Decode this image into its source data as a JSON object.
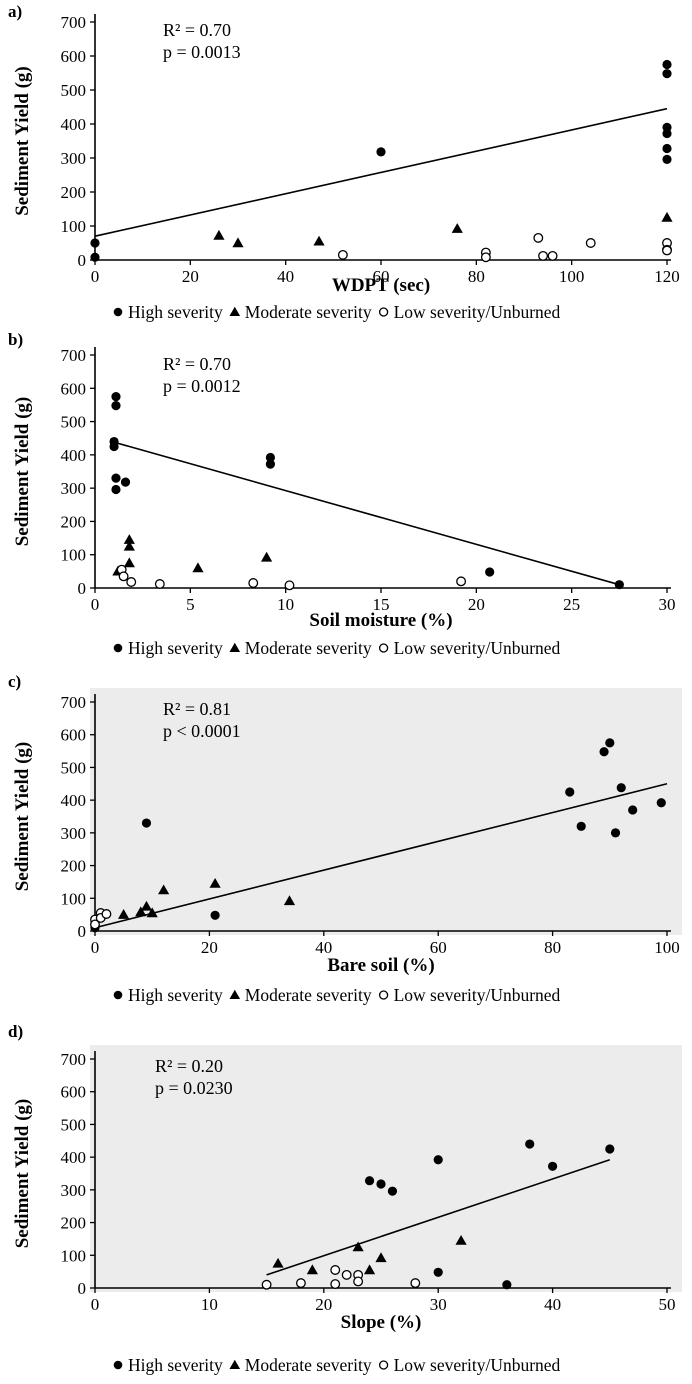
{
  "chart_data": [
    {
      "type": "scatter",
      "panel_label": "a)",
      "xlabel": "WDPT (sec)",
      "ylabel": "Sediment Yield (g)",
      "xlim": [
        0,
        120
      ],
      "ylim": [
        0,
        700
      ],
      "xticks": [
        "0",
        "20",
        "40",
        "60",
        "80",
        "100",
        "120"
      ],
      "yticks": [
        "0",
        "100",
        "200",
        "300",
        "400",
        "500",
        "600",
        "700"
      ],
      "stats": {
        "r2": "R² = 0.70",
        "p": "p = 0.0013"
      },
      "trendline": {
        "x": [
          0,
          120
        ],
        "y": [
          70,
          445
        ]
      },
      "grid": false,
      "legend_position": "bottom",
      "series": [
        {
          "name": "High severity",
          "marker": "circle-filled",
          "color": "#000000",
          "points": [
            [
              0,
              8
            ],
            [
              0,
              50
            ],
            [
              60,
              318
            ],
            [
              120,
              575
            ],
            [
              120,
              548
            ],
            [
              120,
              390
            ],
            [
              120,
              372
            ],
            [
              120,
              328
            ],
            [
              120,
              296
            ]
          ]
        },
        {
          "name": "Moderate severity",
          "marker": "triangle-filled",
          "color": "#000000",
          "points": [
            [
              26,
              72
            ],
            [
              30,
              50
            ],
            [
              47,
              55
            ],
            [
              76,
              92
            ],
            [
              120,
              125
            ]
          ]
        },
        {
          "name": "Low severity/Unburned",
          "marker": "circle-open",
          "color": "#000000",
          "points": [
            [
              52,
              15
            ],
            [
              82,
              22
            ],
            [
              82,
              8
            ],
            [
              93,
              65
            ],
            [
              94,
              12
            ],
            [
              96,
              12
            ],
            [
              104,
              50
            ],
            [
              120,
              50
            ],
            [
              120,
              30
            ],
            [
              120,
              28
            ]
          ]
        }
      ]
    },
    {
      "type": "scatter",
      "panel_label": "b)",
      "xlabel": "Soil moisture (%)",
      "ylabel": "Sediment Yield (g)",
      "xlim": [
        0,
        30
      ],
      "ylim": [
        0,
        700
      ],
      "xticks": [
        "0",
        "5",
        "10",
        "15",
        "20",
        "25",
        "30"
      ],
      "yticks": [
        "0",
        "100",
        "200",
        "300",
        "400",
        "500",
        "600",
        "700"
      ],
      "stats": {
        "r2": "R² = 0.70",
        "p": "p = 0.0012"
      },
      "trendline": {
        "x": [
          1,
          27.5
        ],
        "y": [
          438,
          10
        ]
      },
      "grid": false,
      "legend_position": "bottom",
      "series": [
        {
          "name": "High severity",
          "marker": "circle-filled",
          "color": "#000000",
          "points": [
            [
              1.1,
              575
            ],
            [
              1.1,
              548
            ],
            [
              1.0,
              440
            ],
            [
              1.0,
              425
            ],
            [
              1.1,
              330
            ],
            [
              1.1,
              296
            ],
            [
              1.6,
              318
            ],
            [
              9.2,
              392
            ],
            [
              9.2,
              372
            ],
            [
              20.7,
              48
            ],
            [
              27.5,
              10
            ]
          ]
        },
        {
          "name": "Moderate severity",
          "marker": "triangle-filled",
          "color": "#000000",
          "points": [
            [
              1.8,
              145
            ],
            [
              1.8,
              125
            ],
            [
              1.8,
              75
            ],
            [
              1.2,
              50
            ],
            [
              5.4,
              60
            ],
            [
              9.0,
              92
            ]
          ]
        },
        {
          "name": "Low severity/Unburned",
          "marker": "circle-open",
          "color": "#000000",
          "points": [
            [
              1.4,
              55
            ],
            [
              1.5,
              35
            ],
            [
              1.9,
              18
            ],
            [
              3.4,
              12
            ],
            [
              8.3,
              15
            ],
            [
              10.2,
              8
            ],
            [
              19.2,
              20
            ]
          ]
        }
      ]
    },
    {
      "type": "scatter",
      "panel_label": "c)",
      "xlabel": "Bare soil (%)",
      "ylabel": "Sediment Yield (g)",
      "xlim": [
        0,
        100
      ],
      "ylim": [
        0,
        700
      ],
      "xticks": [
        "0",
        "20",
        "40",
        "60",
        "80",
        "100"
      ],
      "yticks": [
        "0",
        "100",
        "200",
        "300",
        "400",
        "500",
        "600",
        "700"
      ],
      "stats": {
        "r2": "R² = 0.81",
        "p": "p < 0.0001"
      },
      "trendline": {
        "x": [
          0,
          100
        ],
        "y": [
          10,
          450
        ]
      },
      "grid": false,
      "legend_position": "bottom",
      "series": [
        {
          "name": "High severity",
          "marker": "circle-filled",
          "color": "#000000",
          "points": [
            [
              0,
              10
            ],
            [
              0,
              25
            ],
            [
              9,
              330
            ],
            [
              21,
              48
            ],
            [
              83,
              425
            ],
            [
              85,
              320
            ],
            [
              89,
              548
            ],
            [
              90,
              575
            ],
            [
              91,
              300
            ],
            [
              92,
              438
            ],
            [
              94,
              370
            ],
            [
              99,
              392
            ]
          ]
        },
        {
          "name": "Moderate severity",
          "marker": "triangle-filled",
          "color": "#000000",
          "points": [
            [
              5,
              50
            ],
            [
              8,
              58
            ],
            [
              9,
              75
            ],
            [
              10,
              55
            ],
            [
              12,
              125
            ],
            [
              21,
              145
            ],
            [
              34,
              92
            ]
          ]
        },
        {
          "name": "Low severity/Unburned",
          "marker": "circle-open",
          "color": "#000000",
          "points": [
            [
              0,
              35
            ],
            [
              0,
              20
            ],
            [
              1,
              55
            ],
            [
              1,
              40
            ],
            [
              2,
              52
            ]
          ]
        }
      ]
    },
    {
      "type": "scatter",
      "panel_label": "d)",
      "xlabel": "Slope (%)",
      "ylabel": "Sediment Yield (g)",
      "xlim": [
        0,
        50
      ],
      "ylim": [
        0,
        700
      ],
      "xticks": [
        "0",
        "10",
        "20",
        "30",
        "40",
        "50"
      ],
      "yticks": [
        "0",
        "100",
        "200",
        "300",
        "400",
        "500",
        "600",
        "700"
      ],
      "stats": {
        "r2": "R² = 0.20",
        "p": "p = 0.0230"
      },
      "trendline": {
        "x": [
          15,
          45
        ],
        "y": [
          40,
          392
        ]
      },
      "grid": false,
      "legend_position": "bottom",
      "series": [
        {
          "name": "High severity",
          "marker": "circle-filled",
          "color": "#000000",
          "points": [
            [
              24,
              328
            ],
            [
              25,
              318
            ],
            [
              26,
              296
            ],
            [
              30,
              392
            ],
            [
              30,
              48
            ],
            [
              36,
              10
            ],
            [
              38,
              440
            ],
            [
              40,
              372
            ],
            [
              45,
              425
            ]
          ]
        },
        {
          "name": "Moderate severity",
          "marker": "triangle-filled",
          "color": "#000000",
          "points": [
            [
              16,
              75
            ],
            [
              19,
              55
            ],
            [
              23,
              125
            ],
            [
              24,
              55
            ],
            [
              25,
              92
            ],
            [
              32,
              145
            ]
          ]
        },
        {
          "name": "Low severity/Unburned",
          "marker": "circle-open",
          "color": "#000000",
          "points": [
            [
              15,
              10
            ],
            [
              18,
              15
            ],
            [
              21,
              55
            ],
            [
              21,
              12
            ],
            [
              22,
              40
            ],
            [
              23,
              40
            ],
            [
              23,
              20
            ],
            [
              28,
              15
            ]
          ]
        }
      ]
    }
  ]
}
